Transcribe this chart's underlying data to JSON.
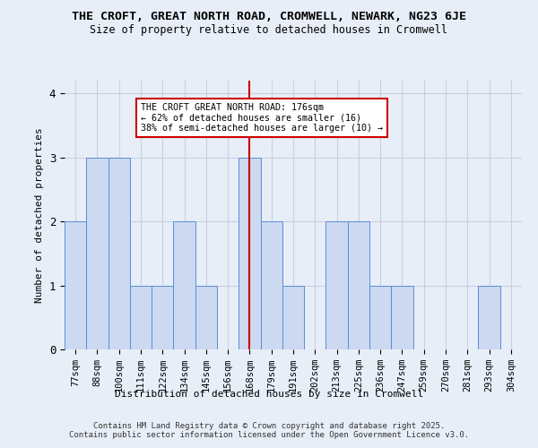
{
  "title_line1": "THE CROFT, GREAT NORTH ROAD, CROMWELL, NEWARK, NG23 6JE",
  "title_line2": "Size of property relative to detached houses in Cromwell",
  "xlabel": "Distribution of detached houses by size in Cromwell",
  "ylabel": "Number of detached properties",
  "bins": [
    "77sqm",
    "88sqm",
    "100sqm",
    "111sqm",
    "122sqm",
    "134sqm",
    "145sqm",
    "156sqm",
    "168sqm",
    "179sqm",
    "191sqm",
    "202sqm",
    "213sqm",
    "225sqm",
    "236sqm",
    "247sqm",
    "259sqm",
    "270sqm",
    "281sqm",
    "293sqm",
    "304sqm"
  ],
  "values": [
    2,
    3,
    3,
    1,
    1,
    2,
    1,
    0,
    3,
    2,
    1,
    0,
    2,
    2,
    1,
    1,
    0,
    0,
    0,
    1,
    0
  ],
  "bar_color": "#ccd9f0",
  "bar_edge_color": "#5b8dd9",
  "background_color": "#e8eef8",
  "grid_color": "#c8d0e0",
  "red_line_bin": 8,
  "annotation_text": "THE CROFT GREAT NORTH ROAD: 176sqm\n← 62% of detached houses are smaller (16)\n38% of semi-detached houses are larger (10) →",
  "annotation_box_color": "#ffffff",
  "annotation_box_edge": "#cc0000",
  "ylim": [
    0,
    4.2
  ],
  "yticks": [
    0,
    1,
    2,
    3,
    4
  ],
  "footer": "Contains HM Land Registry data © Crown copyright and database right 2025.\nContains public sector information licensed under the Open Government Licence v3.0."
}
